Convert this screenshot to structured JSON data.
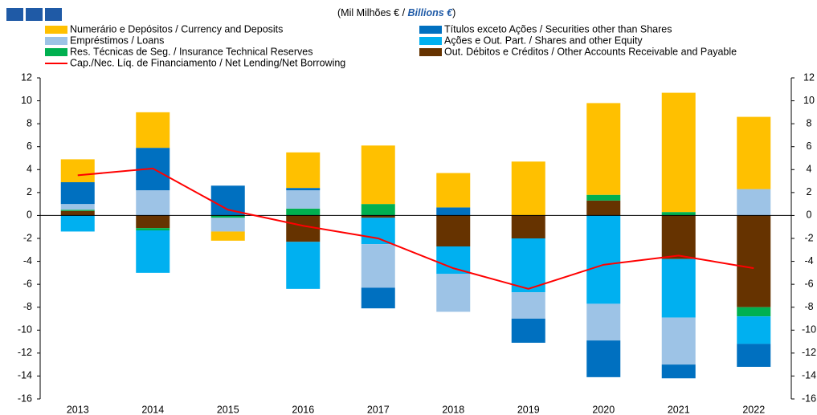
{
  "chart_data": {
    "type": "bar",
    "stacked": true,
    "subtitle": {
      "pt": "(Mil Milhões € / ",
      "en": "Billions €",
      "close": ")"
    },
    "categories": [
      "2013",
      "2014",
      "2015",
      "2016",
      "2017",
      "2018",
      "2019",
      "2020",
      "2021",
      "2022"
    ],
    "series": [
      {
        "name": "Numerário e Depósitos / Currency and Deposits",
        "color": "#ffc000",
        "values": [
          2.0,
          3.1,
          -0.8,
          3.1,
          5.1,
          3.0,
          4.7,
          8.0,
          10.4,
          6.3
        ]
      },
      {
        "name": "Títulos exceto Ações / Securities other than Shares",
        "color": "#0070c0",
        "values": [
          1.9,
          3.7,
          2.6,
          0.2,
          -1.8,
          0.7,
          -2.1,
          -3.2,
          -1.2,
          -2.0
        ]
      },
      {
        "name": "Empréstimos / Loans",
        "color": "#9dc3e6",
        "values": [
          0.5,
          2.2,
          -1.2,
          1.6,
          -3.8,
          -3.3,
          -2.3,
          -3.2,
          -4.1,
          2.3
        ]
      },
      {
        "name": "Ações e Out. Part. / Shares and other Equity",
        "color": "#00b0f0",
        "values": [
          -1.4,
          -3.7,
          0,
          -4.1,
          -2.3,
          -2.4,
          -4.7,
          -7.7,
          -5.1,
          -2.4
        ]
      },
      {
        "name": "Res. Técnicas de Seg. / Insurance Technical Reserves",
        "color": "#00b050",
        "values": [
          0.1,
          -0.2,
          -0.2,
          0.6,
          1.0,
          0,
          0,
          0.5,
          0.3,
          -0.8
        ]
      },
      {
        "name": "Out. Débitos e Créditos / Other Accounts Receivable and Payable",
        "color": "#663300",
        "values": [
          0.4,
          -1.1,
          0,
          -2.3,
          -0.2,
          -2.7,
          -2.0,
          1.3,
          -3.8,
          -8.0
        ]
      },
      {
        "name": "Cap./Nec. Líq. de Financiamento / Net Lending/Net Borrowing",
        "color": "#ff0000",
        "type": "line",
        "values": [
          3.5,
          4.1,
          0.5,
          -0.9,
          -2.0,
          -4.6,
          -6.4,
          -4.3,
          -3.5,
          -4.6
        ]
      }
    ],
    "ylim": [
      -16,
      12
    ],
    "yticks": [
      -16,
      -14,
      -12,
      -10,
      -8,
      -6,
      -4,
      -2,
      0,
      2,
      4,
      6,
      8,
      10,
      12
    ],
    "y2lim": [
      -16,
      12
    ],
    "y2ticks": [
      -16,
      -14,
      -12,
      -10,
      -8,
      -6,
      -4,
      -2,
      0,
      2,
      4,
      6,
      8,
      10,
      12
    ]
  }
}
